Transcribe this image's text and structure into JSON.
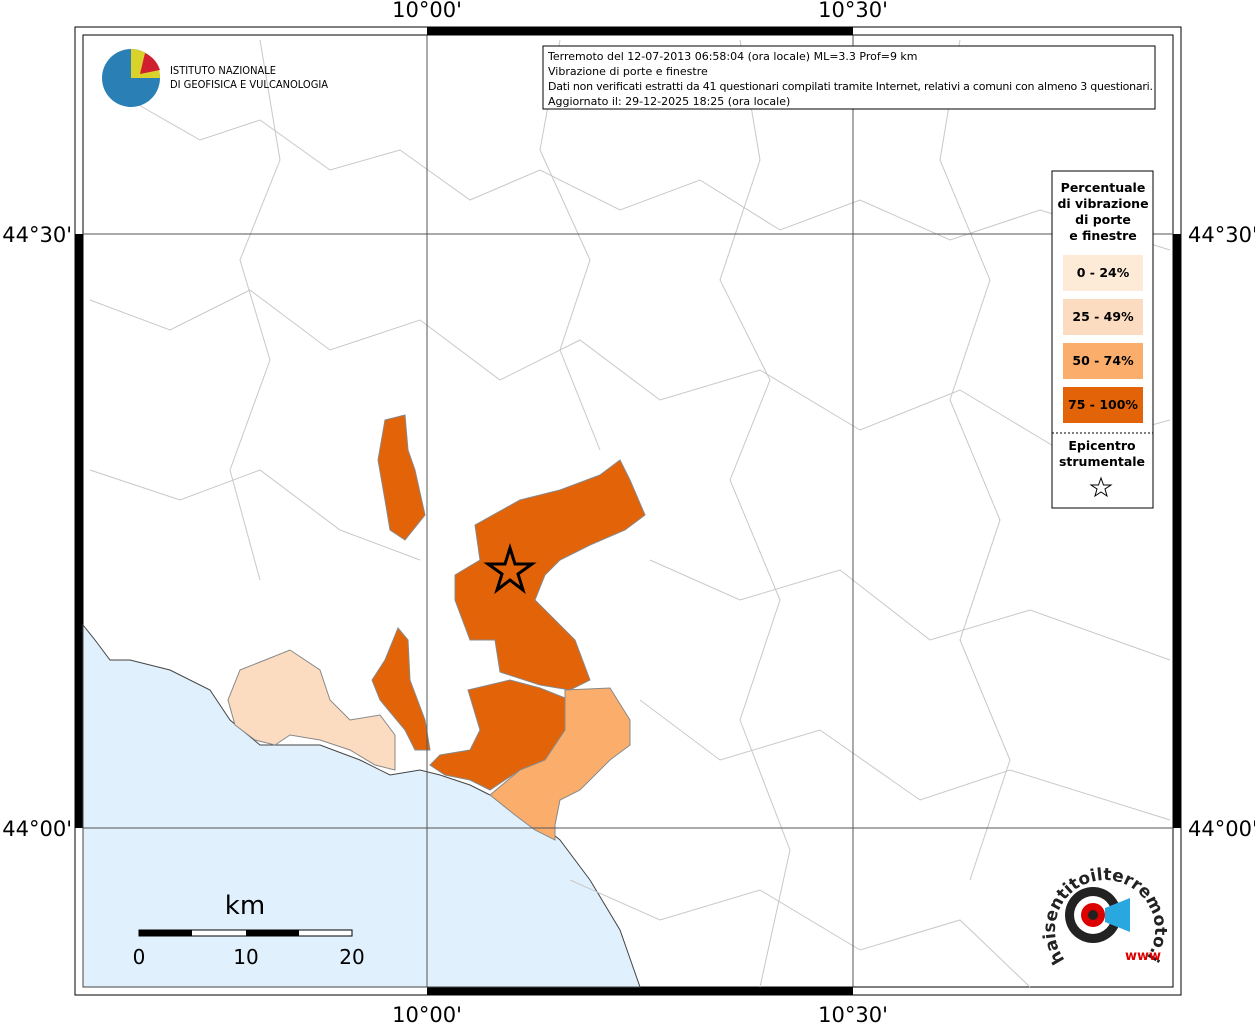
{
  "logo": {
    "lines": [
      "ISTITUTO NAZIONALE",
      "DI GEOFISICA E VULCANOLOGIA"
    ]
  },
  "info": {
    "lines": [
      "Terremoto del 12-07-2013 06:58:04 (ora locale) ML=3.3 Prof=9 km",
      "Vibrazione di porte e finestre",
      "Dati non verificati estratti da 41 questionari compilati tramite Internet, relativi a comuni con almeno 3 questionari.",
      "Aggiornato il: 29-12-2025 18:25 (ora locale)"
    ]
  },
  "axes": {
    "longitudes": [
      "10°00'",
      "10°30'"
    ],
    "latitudes": [
      "44°30'",
      "44°00'"
    ]
  },
  "legend": {
    "title_lines": [
      "Percentuale",
      "di vibrazione",
      "di porte",
      "e finestre"
    ],
    "classes": [
      {
        "label": "0 - 24%",
        "color": "#fdebd7"
      },
      {
        "label": "25 - 49%",
        "color": "#fcdcc0"
      },
      {
        "label": "50 - 74%",
        "color": "#fbae6c"
      },
      {
        "label": "75 - 100%",
        "color": "#e36408"
      }
    ],
    "epicenter_lines": [
      "Epicentro",
      "strumentale"
    ]
  },
  "scale": {
    "unit": "km",
    "ticks": [
      "0",
      "10",
      "20"
    ]
  },
  "brand": {
    "name": "haisentitoilterremoto.it",
    "www": "www"
  }
}
